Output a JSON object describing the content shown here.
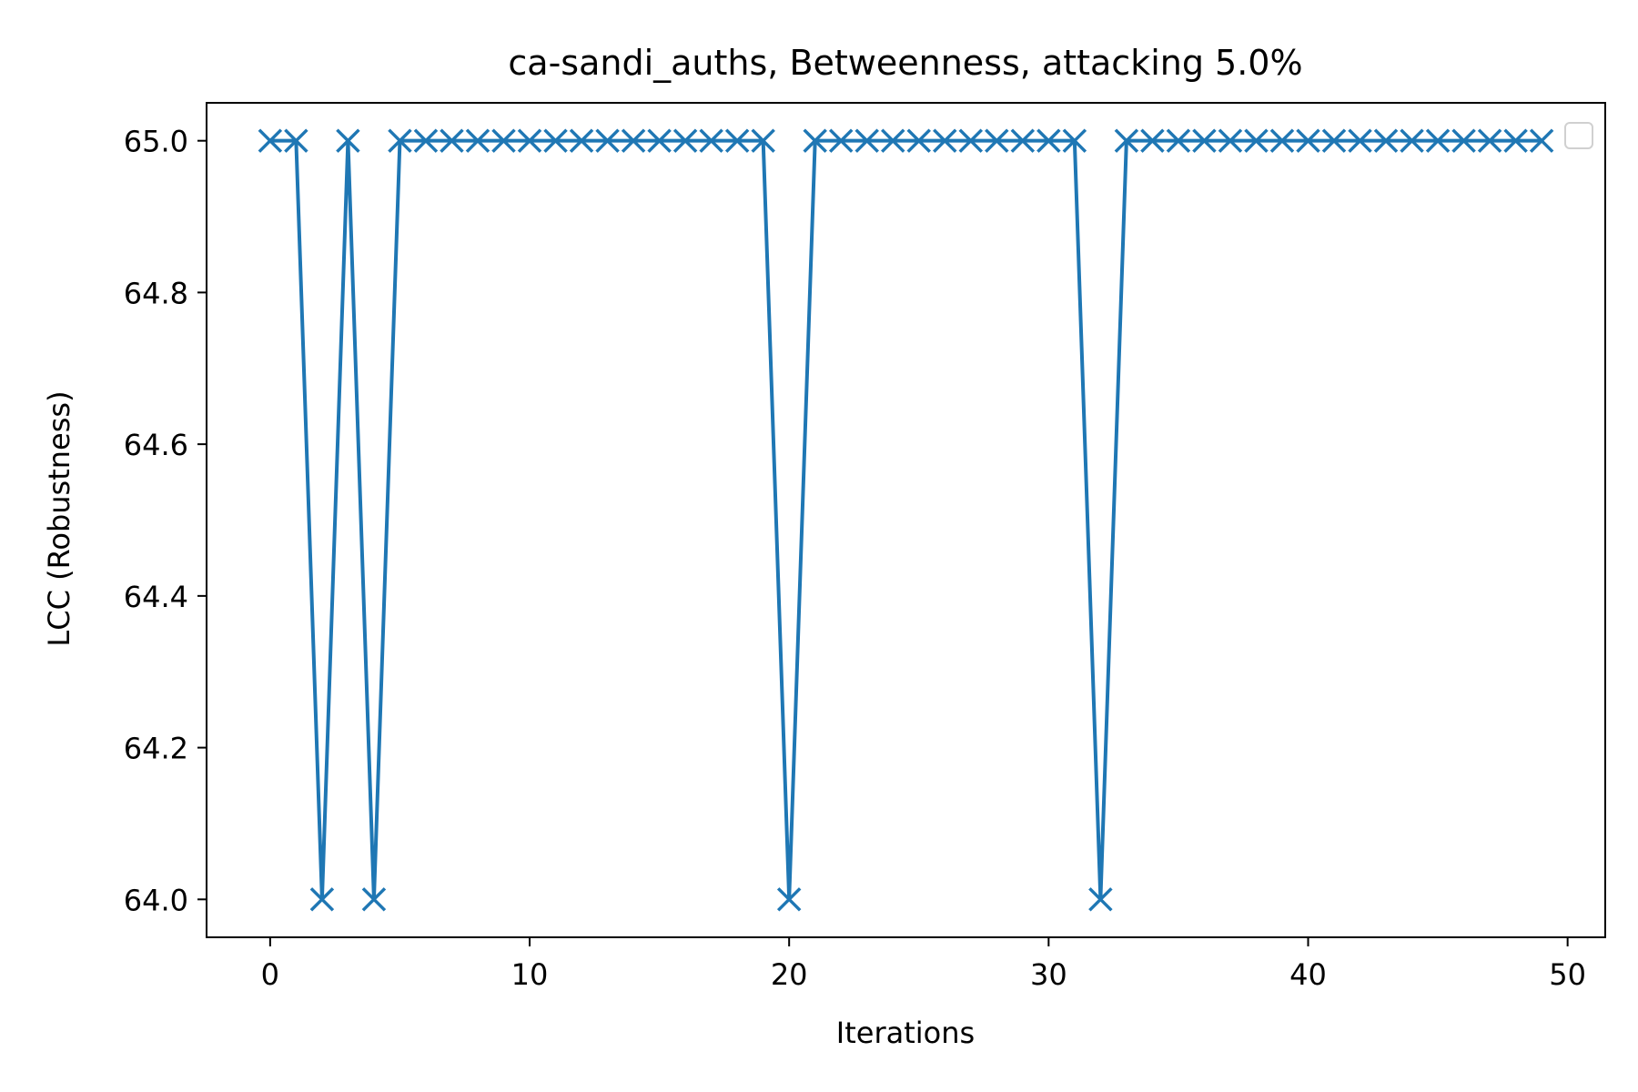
{
  "chart_data": {
    "type": "line",
    "title": "ca-sandi_auths, Betweenness, attacking 5.0%",
    "xlabel": "Iterations",
    "ylabel": "LCC (Robustness)",
    "xlim": [
      -2.45,
      51.45
    ],
    "ylim": [
      63.95,
      65.05
    ],
    "xticks": [
      0,
      10,
      20,
      30,
      40,
      50
    ],
    "xtick_labels": [
      "0",
      "10",
      "20",
      "30",
      "40",
      "50"
    ],
    "yticks": [
      64.0,
      64.2,
      64.4,
      64.6,
      64.8,
      65.0
    ],
    "ytick_labels": [
      "64.0",
      "64.2",
      "64.4",
      "64.6",
      "64.8",
      "65.0"
    ],
    "grid": false,
    "legend": "top-right (empty)",
    "series": [
      {
        "color": "#1f77b4",
        "marker": "x",
        "x": [
          0,
          1,
          2,
          3,
          4,
          5,
          6,
          7,
          8,
          9,
          10,
          11,
          12,
          13,
          14,
          15,
          16,
          17,
          18,
          19,
          20,
          21,
          22,
          23,
          24,
          25,
          26,
          27,
          28,
          29,
          30,
          31,
          32,
          33,
          34,
          35,
          36,
          37,
          38,
          39,
          40,
          41,
          42,
          43,
          44,
          45,
          46,
          47,
          48,
          49
        ],
        "values": [
          65,
          65,
          64,
          65,
          64,
          65,
          65,
          65,
          65,
          65,
          65,
          65,
          65,
          65,
          65,
          65,
          65,
          65,
          65,
          65,
          64,
          65,
          65,
          65,
          65,
          65,
          65,
          65,
          65,
          65,
          65,
          65,
          64,
          65,
          65,
          65,
          65,
          65,
          65,
          65,
          65,
          65,
          65,
          65,
          65,
          65,
          65,
          65,
          65,
          65
        ]
      }
    ]
  }
}
